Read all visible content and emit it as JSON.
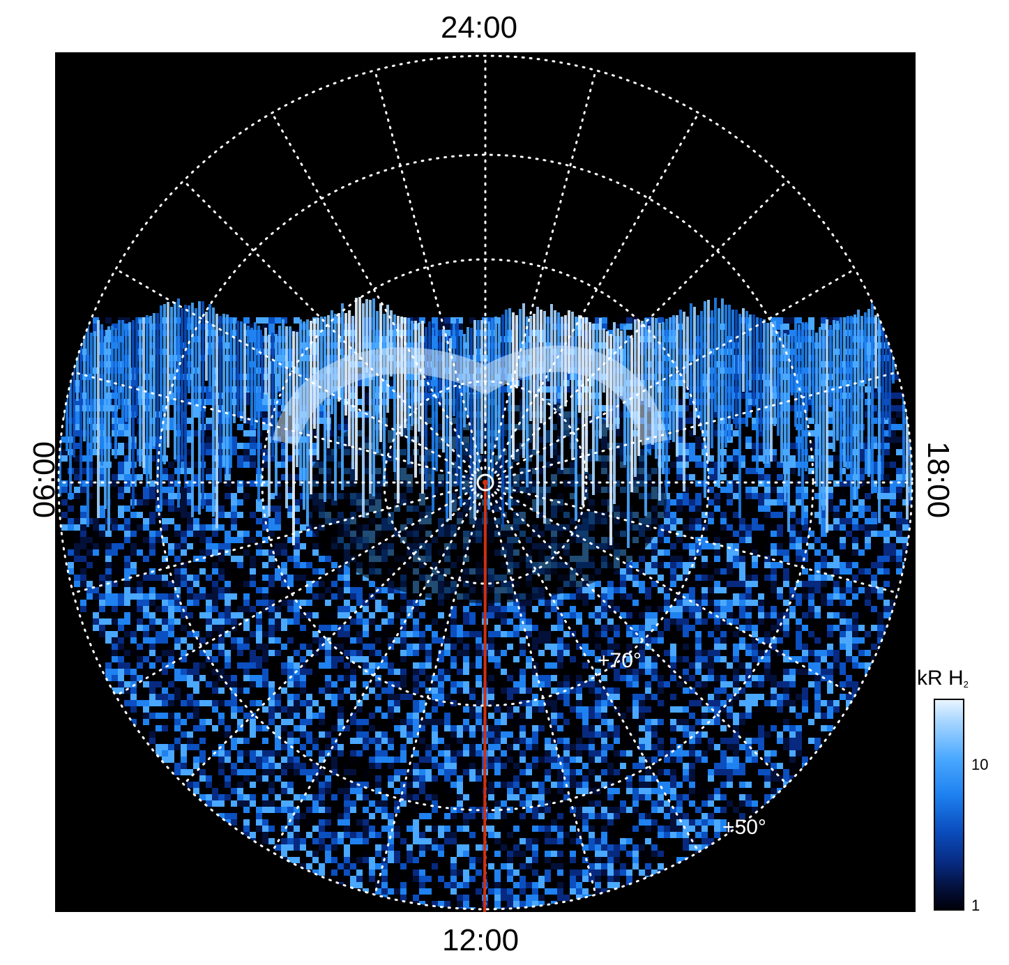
{
  "hour_labels": {
    "top": "24:00",
    "bottom": "12:00",
    "left": "06:00",
    "right": "18:00"
  },
  "latitude_labels": {
    "inner": "+70°",
    "outer": "+50°"
  },
  "colorbar": {
    "title": "kR H",
    "title_subscript": "2",
    "tick_high": "10",
    "tick_low": "1",
    "colors": [
      "#e9f5ff",
      "#a8d6ff",
      "#4aa8ff",
      "#1f82f0",
      "#0b4fc0",
      "#072a80",
      "#03103a",
      "#00000a"
    ]
  },
  "colors": {
    "background": "#000000",
    "grid": "#ffffff",
    "meridian_line": "#d03010"
  }
}
